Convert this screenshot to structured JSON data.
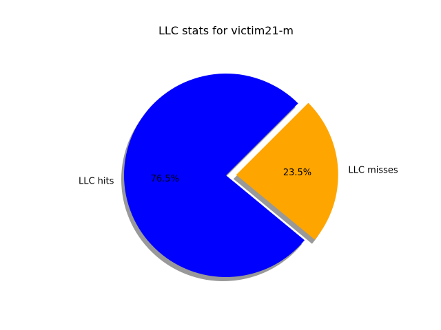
{
  "chart_data": {
    "type": "pie",
    "title": "LLC stats for victim21-m",
    "slices": [
      {
        "label": "LLC hits",
        "value": 76.5,
        "pct_label": "76.5%",
        "color": "#0000ff",
        "explode": 0
      },
      {
        "label": "LLC misses",
        "value": 23.5,
        "pct_label": "23.5%",
        "color": "#ffa500",
        "explode": 0.1
      }
    ],
    "shadow": true,
    "start_angle_deg": 45,
    "direction": "counterclockwise"
  }
}
